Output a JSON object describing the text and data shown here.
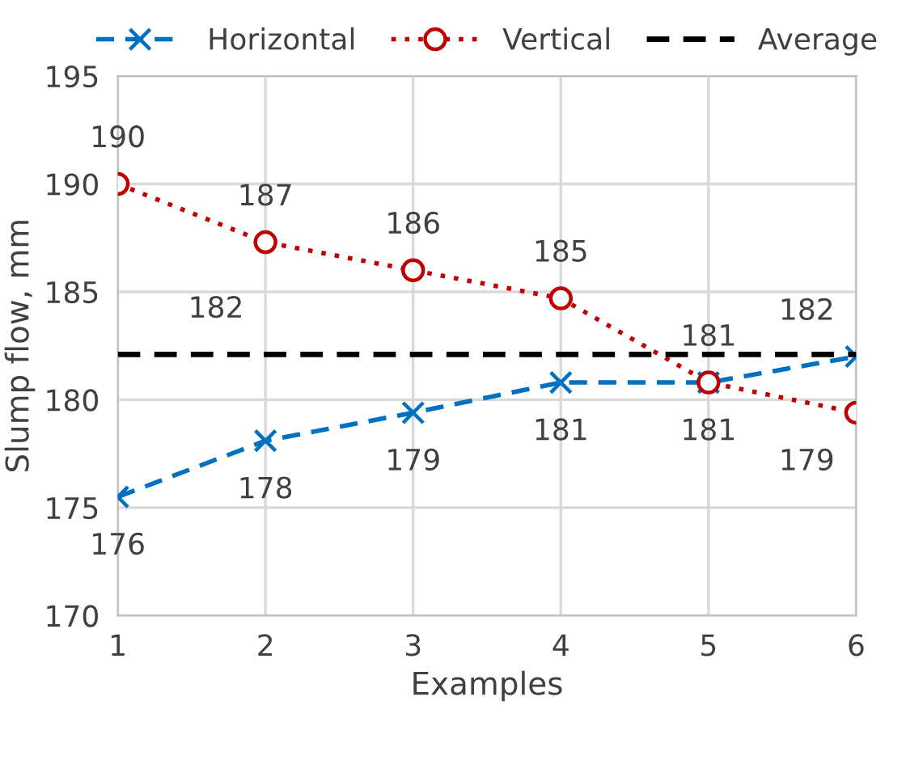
{
  "chart_data": {
    "type": "line",
    "xlabel": "Examples",
    "ylabel": "Slump flow, mm",
    "categories": [
      "1",
      "2",
      "3",
      "4",
      "5",
      "6"
    ],
    "series": [
      {
        "name": "Horizontal",
        "color": "#0070c0",
        "marker": "cross",
        "line_style": "dashed",
        "values": [
          175.5,
          178.1,
          179.4,
          180.8,
          180.8,
          182.0
        ],
        "value_labels": [
          "176",
          "178",
          "179",
          "181",
          "181",
          "182"
        ]
      },
      {
        "name": "Vertical",
        "color": "#c00000",
        "marker": "circle",
        "line_style": "dotted",
        "values": [
          190.0,
          187.3,
          186.0,
          184.7,
          180.8,
          179.4
        ],
        "value_labels": [
          "190",
          "187",
          "186",
          "185",
          "181",
          "179"
        ]
      },
      {
        "name": "Average",
        "color": "#000000",
        "marker": "none",
        "line_style": "dashed",
        "values": [
          182.1,
          182.1,
          182.1,
          182.1,
          182.1,
          182.1
        ],
        "value_labels": [
          null,
          "182",
          null,
          null,
          null,
          null
        ]
      }
    ],
    "ylim": [
      170,
      195
    ],
    "yticks": [
      170,
      175,
      180,
      185,
      190,
      195
    ],
    "grid": true,
    "legend": "top"
  }
}
